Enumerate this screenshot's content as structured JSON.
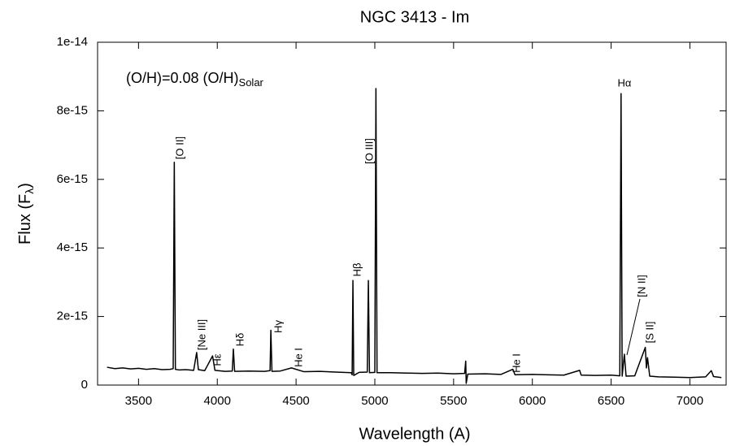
{
  "chart_data": {
    "type": "line",
    "title": "NGC 3413 - Im",
    "x_label": "Wavelength (A)",
    "y_label": [
      "Flux (F",
      "λ",
      ")"
    ],
    "annotation": [
      "(O/H)=0.08 (O/H)",
      "Solar"
    ],
    "line_labels": [
      "[O II]",
      "[Ne III]",
      "Hε",
      "Hδ",
      "Hγ",
      "He I",
      "Hβ",
      "[O III]",
      "He I",
      "Hα",
      "[N II]",
      "[S II]"
    ],
    "color": "#000000",
    "xlim": [
      3240,
      7230
    ],
    "ylim": [
      0,
      1e-14
    ],
    "xticks": [
      3500,
      4000,
      4500,
      5000,
      5500,
      6000,
      6500,
      7000
    ],
    "yticks": [
      0,
      2e-15,
      4e-15,
      6e-15,
      8e-15,
      1e-14
    ],
    "x": [
      3300,
      3350,
      3400,
      3450,
      3500,
      3550,
      3600,
      3650,
      3700,
      3720,
      3727,
      3734,
      3760,
      3800,
      3850,
      3869,
      3880,
      3920,
      3970,
      3985,
      4050,
      4095,
      4102,
      4110,
      4200,
      4300,
      4335,
      4340,
      4347,
      4400,
      4471,
      4550,
      4650,
      4750,
      4850,
      4856,
      4861,
      4866,
      4900,
      4952,
      4959,
      4966,
      5000,
      5007,
      5014,
      5100,
      5200,
      5300,
      5400,
      5500,
      5570,
      5577,
      5580,
      5590,
      5700,
      5800,
      5876,
      5890,
      6000,
      6100,
      6200,
      6300,
      6310,
      6400,
      6500,
      6555,
      6563,
      6570,
      6584,
      6595,
      6650,
      6717,
      6724,
      6731,
      6745,
      6800,
      6900,
      7000,
      7100,
      7136,
      7150,
      7200
    ],
    "values": [
      5.2e-16,
      4.8e-16,
      5e-16,
      4.7e-16,
      4.9e-16,
      4.6e-16,
      4.8e-16,
      4.5e-16,
      4.6e-16,
      4.8e-16,
      6.5e-15,
      4.6e-16,
      4.4e-16,
      4.5e-16,
      4.3e-16,
      9.5e-16,
      4.5e-16,
      4.2e-16,
      8.5e-16,
      4.3e-16,
      4e-16,
      4.1e-16,
      1.05e-15,
      4e-16,
      4.1e-16,
      4e-16,
      4.2e-16,
      1.6e-15,
      4e-16,
      4.1e-16,
      5e-16,
      3.9e-16,
      4e-16,
      3.8e-16,
      3.6e-16,
      3e-16,
      3.05e-15,
      2.8e-16,
      3.7e-16,
      3.8e-16,
      3.05e-15,
      3.6e-16,
      3.7e-16,
      8.65e-15,
      3.6e-16,
      3.6e-16,
      3.5e-16,
      3.4e-16,
      3.5e-16,
      3.3e-16,
      3.4e-16,
      7e-16,
      5e-17,
      3.2e-16,
      3.3e-16,
      3.1e-16,
      4.6e-16,
      3e-16,
      3.1e-16,
      3e-16,
      2.9e-16,
      4.3e-16,
      2.9e-16,
      2.8e-16,
      2.9e-16,
      2.7e-16,
      8.5e-15,
      2.6e-16,
      9e-16,
      2.6e-16,
      2.7e-16,
      1.1e-15,
      5e-16,
      8e-16,
      2.6e-16,
      2.4e-16,
      2.3e-16,
      2.2e-16,
      2.4e-16,
      4.2e-16,
      2.5e-16,
      2.2e-16
    ]
  }
}
